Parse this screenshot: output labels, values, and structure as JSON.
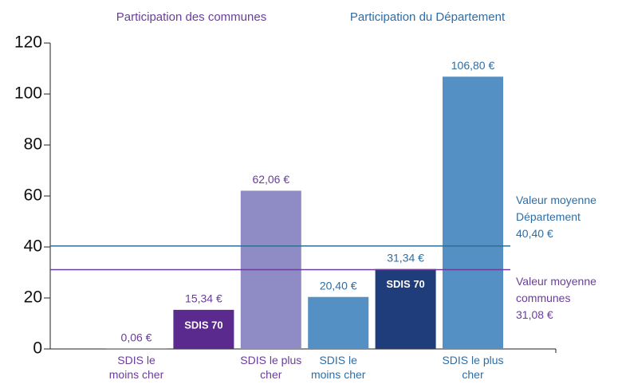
{
  "chart_data": {
    "type": "bar",
    "ylim": [
      0,
      120
    ],
    "yticks": [
      0,
      20,
      40,
      60,
      80,
      100,
      120
    ],
    "grid": false,
    "series": [
      {
        "name": "Participation des communes",
        "color": "#6a3d9a",
        "categories": [
          "SDIS le moins cher",
          null,
          "SDIS le plus cher"
        ],
        "values": [
          0.06,
          15.34,
          62.06
        ],
        "value_labels": [
          "0,06 €",
          "15,34 €",
          "62,06 €"
        ],
        "colors": [
          "#8f8bc4",
          "#5b2a8e",
          "#8f8bc4"
        ],
        "bar_labels": [
          null,
          "SDIS 70",
          null
        ]
      },
      {
        "name": "Participation du Département",
        "color": "#2e6da4",
        "categories": [
          "SDIS le moins cher",
          null,
          "SDIS le plus cher"
        ],
        "values": [
          20.4,
          31.34,
          106.8
        ],
        "value_labels": [
          "20,40 €",
          "31,34 €",
          "106,80 €"
        ],
        "colors": [
          "#5590c4",
          "#1f3d7a",
          "#5590c4"
        ],
        "bar_labels": [
          null,
          "SDIS 70",
          null
        ]
      }
    ],
    "reference_lines": [
      {
        "label": "Valeur moyenne Département",
        "value": 40.4,
        "value_label": "40,40 €",
        "color": "#2e6e96",
        "text_color": "#2e6da4"
      },
      {
        "label": "Valeur moyenne communes",
        "value": 31.08,
        "value_label": "31,08 €",
        "color": "#6a3d9a",
        "text_color": "#6a3d9a"
      }
    ]
  }
}
